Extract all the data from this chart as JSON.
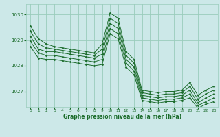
{
  "title": "Graphe pression niveau de la mer (hPa)",
  "bg_color": "#cce8e8",
  "grid_color": "#99ccbb",
  "line_color": "#1a6b2a",
  "xlim": [
    -0.5,
    23.5
  ],
  "ylim": [
    1026.4,
    1030.4
  ],
  "xticks": [
    0,
    1,
    2,
    3,
    4,
    5,
    6,
    7,
    8,
    9,
    10,
    11,
    12,
    13,
    14,
    15,
    16,
    17,
    18,
    19,
    20,
    21,
    22,
    23
  ],
  "yticks": [
    1027,
    1028,
    1029,
    1030
  ],
  "series": [
    [
      1029.55,
      1029.05,
      1028.85,
      1028.75,
      1028.7,
      1028.65,
      1028.6,
      1028.55,
      1028.5,
      1028.85,
      1030.05,
      1029.85,
      1028.55,
      1028.25,
      1027.05,
      1027.0,
      1026.95,
      1027.0,
      1027.0,
      1027.05,
      1027.35,
      1026.85,
      1027.05,
      1027.2
    ],
    [
      1029.35,
      1028.85,
      1028.7,
      1028.65,
      1028.6,
      1028.55,
      1028.5,
      1028.45,
      1028.4,
      1028.65,
      1029.85,
      1029.65,
      1028.4,
      1028.1,
      1026.95,
      1026.9,
      1026.85,
      1026.9,
      1026.9,
      1026.95,
      1027.2,
      1026.7,
      1026.9,
      1027.05
    ],
    [
      1029.15,
      1028.65,
      1028.55,
      1028.55,
      1028.5,
      1028.45,
      1028.4,
      1028.35,
      1028.3,
      1028.45,
      1029.65,
      1029.45,
      1028.25,
      1027.95,
      1026.85,
      1026.8,
      1026.75,
      1026.8,
      1026.8,
      1026.85,
      1027.05,
      1026.55,
      1026.75,
      1026.9
    ],
    [
      1028.95,
      1028.5,
      1028.4,
      1028.4,
      1028.35,
      1028.3,
      1028.25,
      1028.2,
      1028.15,
      1028.25,
      1029.45,
      1029.25,
      1028.1,
      1027.8,
      1026.75,
      1026.7,
      1026.65,
      1026.7,
      1026.7,
      1026.75,
      1026.9,
      1026.45,
      1026.6,
      1026.75
    ],
    [
      1028.75,
      1028.3,
      1028.25,
      1028.25,
      1028.2,
      1028.15,
      1028.1,
      1028.05,
      1028.0,
      1028.05,
      1029.25,
      1029.05,
      1027.95,
      1027.65,
      1026.65,
      1026.6,
      1026.55,
      1026.6,
      1026.6,
      1026.65,
      1026.75,
      1026.35,
      1026.5,
      1026.6
    ]
  ]
}
